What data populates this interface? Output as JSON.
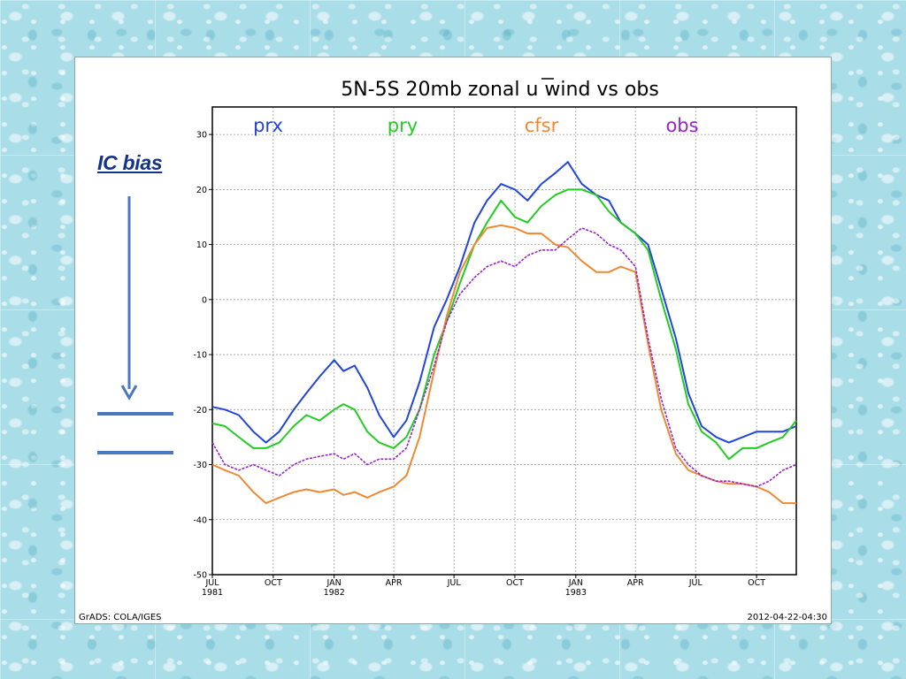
{
  "slide": {
    "annotation": "IC bias"
  },
  "footer": {
    "left": "GrADS: COLA/IGES",
    "right": "2012-04-22-04:30"
  },
  "colors": {
    "prx": "#2244dd",
    "pry": "#22cc22",
    "cfsr": "#ee8833",
    "obs": "#9922cc",
    "annotation": "#14338a",
    "arrow": "#4a78c0"
  },
  "chart_data": {
    "type": "line",
    "title": "5N-5S 20mb zonal u wind vs obs",
    "xlabel": "",
    "ylabel": "",
    "ylim": [
      -50,
      35
    ],
    "yticks": [
      -50,
      -40,
      -30,
      -20,
      -10,
      0,
      10,
      20,
      30
    ],
    "grid": true,
    "legend_placement": "top",
    "x_range": [
      "1981-07-01",
      "1983-11-30"
    ],
    "x_ticks": [
      {
        "label": "JUL",
        "sublabel": "1981",
        "date": "1981-07-01"
      },
      {
        "label": "OCT",
        "sublabel": "",
        "date": "1981-10-01"
      },
      {
        "label": "JAN",
        "sublabel": "1982",
        "date": "1982-01-01"
      },
      {
        "label": "APR",
        "sublabel": "",
        "date": "1982-04-01"
      },
      {
        "label": "JUL",
        "sublabel": "",
        "date": "1982-07-01"
      },
      {
        "label": "OCT",
        "sublabel": "",
        "date": "1982-10-01"
      },
      {
        "label": "JAN",
        "sublabel": "1983",
        "date": "1983-01-01"
      },
      {
        "label": "APR",
        "sublabel": "",
        "date": "1983-04-01"
      },
      {
        "label": "JUL",
        "sublabel": "",
        "date": "1983-07-01"
      },
      {
        "label": "OCT",
        "sublabel": "",
        "date": "1983-10-01"
      }
    ],
    "series": [
      {
        "name": "prx",
        "x": [
          "1981-07-01",
          "1981-07-20",
          "1981-08-10",
          "1981-09-01",
          "1981-09-20",
          "1981-10-10",
          "1981-11-01",
          "1981-11-20",
          "1981-12-10",
          "1982-01-01",
          "1982-01-15",
          "1982-02-01",
          "1982-02-20",
          "1982-03-10",
          "1982-04-01",
          "1982-04-20",
          "1982-05-10",
          "1982-06-01",
          "1982-06-20",
          "1982-07-10",
          "1982-08-01",
          "1982-08-20",
          "1982-09-10",
          "1982-10-01",
          "1982-10-20",
          "1982-11-10",
          "1982-12-01",
          "1982-12-20",
          "1983-01-10",
          "1983-02-01",
          "1983-02-20",
          "1983-03-10",
          "1983-04-01",
          "1983-04-20",
          "1983-05-10",
          "1983-06-01",
          "1983-06-20",
          "1983-07-10",
          "1983-08-01",
          "1983-08-20",
          "1983-09-10",
          "1983-10-01",
          "1983-10-20",
          "1983-11-10",
          "1983-11-30"
        ],
        "values": [
          -19.5,
          -20,
          -21,
          -24,
          -26,
          -24,
          -20,
          -17,
          -14,
          -11,
          -13,
          -12,
          -16,
          -21,
          -25,
          -22,
          -15,
          -5,
          0,
          6,
          14,
          18,
          21,
          20,
          18,
          21,
          23,
          25,
          21,
          19,
          18,
          14,
          12,
          10,
          2,
          -7,
          -17,
          -23,
          -25,
          -26,
          -25,
          -24,
          -24,
          -24,
          -23
        ]
      },
      {
        "name": "pry",
        "x": [
          "1981-07-01",
          "1981-07-20",
          "1981-08-10",
          "1981-09-01",
          "1981-09-20",
          "1981-10-10",
          "1981-11-01",
          "1981-11-20",
          "1981-12-10",
          "1982-01-01",
          "1982-01-15",
          "1982-02-01",
          "1982-02-20",
          "1982-03-10",
          "1982-04-01",
          "1982-04-20",
          "1982-05-10",
          "1982-06-01",
          "1982-06-20",
          "1982-07-10",
          "1982-08-01",
          "1982-08-20",
          "1982-09-10",
          "1982-10-01",
          "1982-10-20",
          "1982-11-10",
          "1982-12-01",
          "1982-12-20",
          "1983-01-10",
          "1983-02-01",
          "1983-02-20",
          "1983-03-10",
          "1983-04-01",
          "1983-04-20",
          "1983-05-10",
          "1983-06-01",
          "1983-06-20",
          "1983-07-10",
          "1983-08-01",
          "1983-08-20",
          "1983-09-10",
          "1983-10-01",
          "1983-10-20",
          "1983-11-10",
          "1983-11-30"
        ],
        "values": [
          -22.5,
          -23,
          -25,
          -27,
          -27,
          -26,
          -23,
          -21,
          -22,
          -20,
          -19,
          -20,
          -24,
          -26,
          -27,
          -25,
          -20,
          -10,
          -4,
          3,
          10,
          14,
          18,
          15,
          14,
          17,
          19,
          20,
          20,
          19,
          16,
          14,
          12,
          9,
          0,
          -9,
          -19,
          -24,
          -26,
          -29,
          -27,
          -27,
          -26,
          -25,
          -22
        ]
      },
      {
        "name": "cfsr",
        "x": [
          "1981-07-01",
          "1981-07-20",
          "1981-08-10",
          "1981-09-01",
          "1981-09-20",
          "1981-10-10",
          "1981-11-01",
          "1981-11-20",
          "1981-12-10",
          "1982-01-01",
          "1982-01-15",
          "1982-02-01",
          "1982-02-20",
          "1982-03-10",
          "1982-04-01",
          "1982-04-20",
          "1982-05-10",
          "1982-06-01",
          "1982-06-20",
          "1982-07-10",
          "1982-08-01",
          "1982-08-20",
          "1982-09-10",
          "1982-10-01",
          "1982-10-20",
          "1982-11-10",
          "1982-12-01",
          "1982-12-20",
          "1983-01-10",
          "1983-02-01",
          "1983-02-20",
          "1983-03-10",
          "1983-04-01",
          "1983-04-20",
          "1983-05-10",
          "1983-06-01",
          "1983-06-20",
          "1983-07-10",
          "1983-08-01",
          "1983-08-20",
          "1983-09-10",
          "1983-10-01",
          "1983-10-20",
          "1983-11-10",
          "1983-11-30"
        ],
        "values": [
          -30,
          -31,
          -32,
          -35,
          -37,
          -36,
          -35,
          -34.5,
          -35,
          -34.5,
          -35.5,
          -35,
          -36,
          -35,
          -34,
          -32,
          -25,
          -13,
          -3,
          5,
          10,
          13,
          13.5,
          13,
          12,
          12,
          10,
          9.5,
          7,
          5,
          5,
          6,
          5,
          -8,
          -20,
          -28,
          -31,
          -32,
          -33,
          -33.5,
          -33.5,
          -34,
          -35,
          -37,
          -37
        ]
      },
      {
        "name": "obs",
        "x": [
          "1981-07-01",
          "1981-07-20",
          "1981-08-10",
          "1981-09-01",
          "1981-09-20",
          "1981-10-10",
          "1981-11-01",
          "1981-11-20",
          "1981-12-10",
          "1982-01-01",
          "1982-01-15",
          "1982-02-01",
          "1982-02-20",
          "1982-03-10",
          "1982-04-01",
          "1982-04-20",
          "1982-05-10",
          "1982-06-01",
          "1982-06-20",
          "1982-07-10",
          "1982-08-01",
          "1982-08-20",
          "1982-09-10",
          "1982-10-01",
          "1982-10-20",
          "1982-11-10",
          "1982-12-01",
          "1982-12-20",
          "1983-01-10",
          "1983-02-01",
          "1983-02-20",
          "1983-03-10",
          "1983-04-01",
          "1983-04-20",
          "1983-05-10",
          "1983-06-01",
          "1983-06-20",
          "1983-07-10",
          "1983-08-01",
          "1983-08-20",
          "1983-09-10",
          "1983-10-01",
          "1983-10-20",
          "1983-11-10",
          "1983-11-30"
        ],
        "values": [
          -26,
          -30,
          -31,
          -30,
          -31,
          -32,
          -30,
          -29,
          -28.5,
          -28,
          -29,
          -28,
          -30,
          -29,
          -29,
          -27,
          -20,
          -12,
          -4,
          1,
          4,
          6,
          7,
          6,
          8,
          9,
          9,
          11,
          13,
          12,
          10,
          9,
          6,
          -7,
          -18,
          -27,
          -30,
          -32,
          -33,
          -33,
          -33.5,
          -34,
          -33,
          -31,
          -30
        ]
      }
    ]
  }
}
